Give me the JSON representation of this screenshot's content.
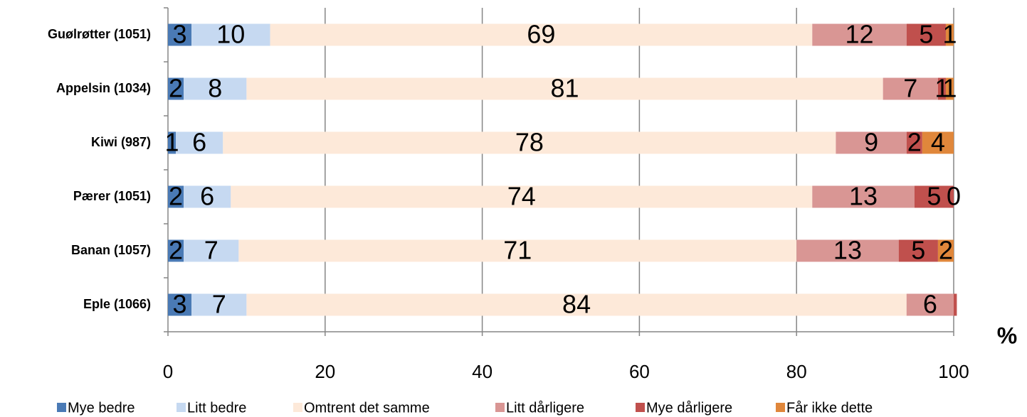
{
  "chart_data": {
    "type": "stacked-bar-horizontal",
    "categories": [
      "Guølrøtter (1051)",
      "Appelsin (1034)",
      "Kiwi (987)",
      "Pærer (1051)",
      "Banan (1057)",
      "Eple (1066)"
    ],
    "series": [
      {
        "name": "Mye bedre",
        "color": "#4a7ab5",
        "values": [
          3,
          2,
          1,
          2,
          2,
          3
        ]
      },
      {
        "name": "Litt bedre",
        "color": "#c6d9f1",
        "values": [
          10,
          8,
          6,
          6,
          7,
          7
        ]
      },
      {
        "name": "Omtrent det samme",
        "color": "#fde9d9",
        "values": [
          69,
          81,
          78,
          74,
          71,
          84
        ]
      },
      {
        "name": "Litt dårligere",
        "color": "#d99694",
        "values": [
          12,
          7,
          9,
          13,
          13,
          6
        ]
      },
      {
        "name": "Mye dårligere",
        "color": "#c0504d",
        "values": [
          5,
          1,
          2,
          5,
          5,
          0.4
        ],
        "value_labels": [
          "5",
          "1",
          "2",
          "5",
          "5",
          null
        ]
      },
      {
        "name": "Får ikke dette",
        "color": "#e0873b",
        "values": [
          1,
          1,
          4,
          0,
          2,
          null
        ],
        "value_labels": [
          "1",
          "1",
          "4",
          "0",
          "2",
          null
        ]
      }
    ],
    "x_label": "%",
    "xlim": [
      0,
      100
    ],
    "xticks": [
      0,
      20,
      40,
      60,
      80,
      100
    ],
    "grid": true,
    "legend": "bottom"
  }
}
